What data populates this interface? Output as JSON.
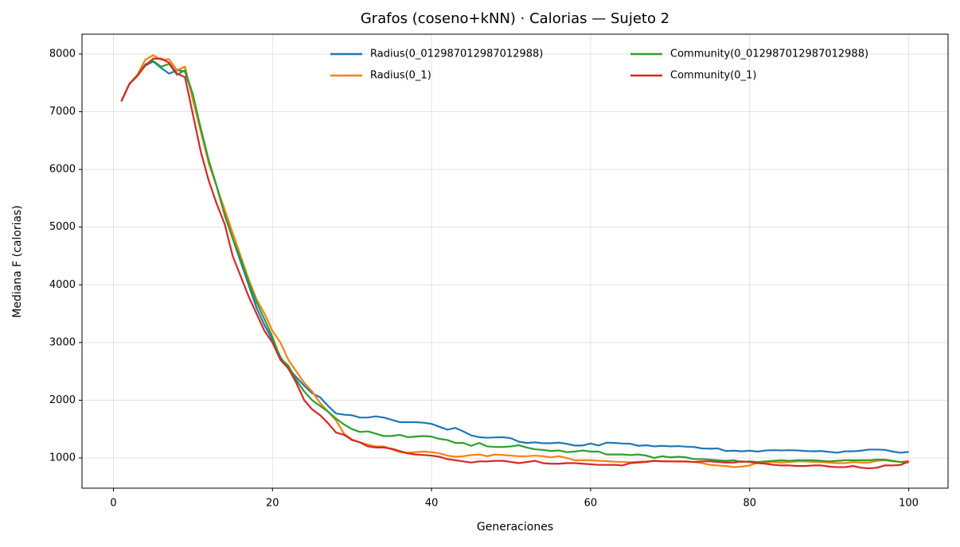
{
  "chart_data": {
    "type": "line",
    "title": "Grafos (coseno+kNN) · Calorias — Sujeto 2",
    "x_label": "Generaciones",
    "y_label": "Mediana F (calorias)",
    "x": [
      1,
      2,
      3,
      4,
      5,
      6,
      7,
      8,
      9,
      10,
      11,
      12,
      13,
      14,
      15,
      16,
      17,
      18,
      19,
      20,
      21,
      22,
      23,
      24,
      25,
      26,
      27,
      28,
      29,
      30,
      31,
      32,
      33,
      34,
      35,
      36,
      37,
      38,
      39,
      40,
      41,
      42,
      43,
      44,
      45,
      46,
      47,
      48,
      49,
      50,
      51,
      52,
      53,
      54,
      55,
      56,
      57,
      58,
      59,
      60,
      61,
      62,
      63,
      64,
      65,
      66,
      67,
      68,
      69,
      70,
      71,
      72,
      73,
      74,
      75,
      76,
      77,
      78,
      79,
      80,
      81,
      82,
      83,
      84,
      85,
      86,
      87,
      88,
      89,
      90,
      91,
      92,
      93,
      94,
      95,
      96,
      97,
      98,
      99,
      100
    ],
    "xlim": [
      -3.95,
      104.95
    ],
    "xticks": [
      0,
      20,
      40,
      60,
      80,
      100
    ],
    "ylim": [
      476,
      8344
    ],
    "yticks": [
      1000,
      2000,
      3000,
      4000,
      5000,
      6000,
      7000,
      8000
    ],
    "grid": true,
    "legend_position": "upper right",
    "series": [
      {
        "name": "Radius(0_012987012987012988)",
        "color": "#1f77b4",
        "values": [
          7180,
          7480,
          7620,
          7800,
          7870,
          7760,
          7660,
          7720,
          7700,
          7250,
          6700,
          6150,
          5700,
          5250,
          4800,
          4400,
          4000,
          3600,
          3300,
          3050,
          2750,
          2550,
          2400,
          2250,
          2120,
          2050,
          1900,
          1770,
          1750,
          1740,
          1700,
          1700,
          1720,
          1700,
          1660,
          1620,
          1620,
          1620,
          1610,
          1590,
          1540,
          1490,
          1520,
          1460,
          1390,
          1360,
          1350,
          1355,
          1360,
          1340,
          1280,
          1260,
          1270,
          1255,
          1255,
          1265,
          1245,
          1215,
          1215,
          1250,
          1215,
          1265,
          1260,
          1250,
          1245,
          1210,
          1220,
          1200,
          1210,
          1200,
          1205,
          1195,
          1190,
          1165,
          1160,
          1165,
          1120,
          1125,
          1115,
          1125,
          1110,
          1130,
          1135,
          1130,
          1135,
          1130,
          1120,
          1115,
          1120,
          1105,
          1090,
          1115,
          1115,
          1125,
          1145,
          1145,
          1140,
          1110,
          1090,
          1105
        ]
      },
      {
        "name": "Radius(0_1)",
        "color": "#ff7f0e",
        "values": [
          7180,
          7480,
          7640,
          7900,
          7980,
          7900,
          7910,
          7720,
          7780,
          7200,
          6650,
          6100,
          5700,
          5300,
          4900,
          4500,
          4100,
          3750,
          3500,
          3200,
          3000,
          2700,
          2500,
          2300,
          2150,
          1950,
          1800,
          1650,
          1420,
          1320,
          1270,
          1230,
          1200,
          1200,
          1150,
          1100,
          1090,
          1100,
          1110,
          1100,
          1080,
          1040,
          1020,
          1030,
          1050,
          1060,
          1030,
          1060,
          1050,
          1040,
          1030,
          1030,
          1040,
          1030,
          1010,
          1030,
          1000,
          960,
          960,
          960,
          950,
          945,
          935,
          930,
          925,
          935,
          940,
          950,
          945,
          940,
          935,
          935,
          930,
          910,
          880,
          870,
          860,
          840,
          850,
          870,
          920,
          920,
          930,
          920,
          930,
          940,
          940,
          930,
          930,
          920,
          910,
          910,
          930,
          920,
          920,
          950,
          960,
          940,
          930,
          950
        ]
      },
      {
        "name": "Community(0_012987012987012988)",
        "color": "#2ca02c",
        "values": [
          7180,
          7480,
          7620,
          7820,
          7880,
          7780,
          7830,
          7640,
          7720,
          7300,
          6700,
          6150,
          5700,
          5200,
          4800,
          4450,
          4050,
          3700,
          3400,
          3100,
          2720,
          2600,
          2350,
          2150,
          2000,
          1900,
          1800,
          1680,
          1580,
          1500,
          1450,
          1460,
          1420,
          1380,
          1380,
          1400,
          1360,
          1370,
          1380,
          1370,
          1330,
          1310,
          1260,
          1260,
          1210,
          1260,
          1200,
          1190,
          1190,
          1200,
          1220,
          1180,
          1150,
          1140,
          1120,
          1130,
          1100,
          1110,
          1130,
          1110,
          1110,
          1060,
          1060,
          1060,
          1050,
          1060,
          1040,
          1000,
          1030,
          1010,
          1020,
          1010,
          980,
          980,
          970,
          960,
          950,
          960,
          930,
          940,
          930,
          940,
          950,
          960,
          950,
          960,
          960,
          960,
          950,
          940,
          950,
          960,
          960,
          960,
          960,
          970,
          970,
          950,
          930,
          920
        ]
      },
      {
        "name": "Community(0_1)",
        "color": "#d62728",
        "values": [
          7180,
          7480,
          7620,
          7800,
          7920,
          7920,
          7850,
          7660,
          7600,
          6950,
          6300,
          5800,
          5400,
          5050,
          4500,
          4150,
          3800,
          3500,
          3200,
          3000,
          2700,
          2550,
          2300,
          2000,
          1840,
          1740,
          1600,
          1440,
          1400,
          1310,
          1270,
          1200,
          1180,
          1180,
          1160,
          1120,
          1080,
          1060,
          1050,
          1040,
          1020,
          980,
          960,
          940,
          920,
          940,
          940,
          950,
          950,
          930,
          910,
          930,
          950,
          910,
          900,
          900,
          910,
          910,
          900,
          890,
          880,
          880,
          880,
          870,
          910,
          920,
          930,
          950,
          940,
          940,
          940,
          940,
          930,
          940,
          940,
          930,
          920,
          920,
          940,
          930,
          910,
          900,
          880,
          870,
          870,
          860,
          860,
          870,
          870,
          850,
          840,
          840,
          860,
          830,
          820,
          830,
          870,
          870,
          880,
          940
        ]
      }
    ]
  }
}
